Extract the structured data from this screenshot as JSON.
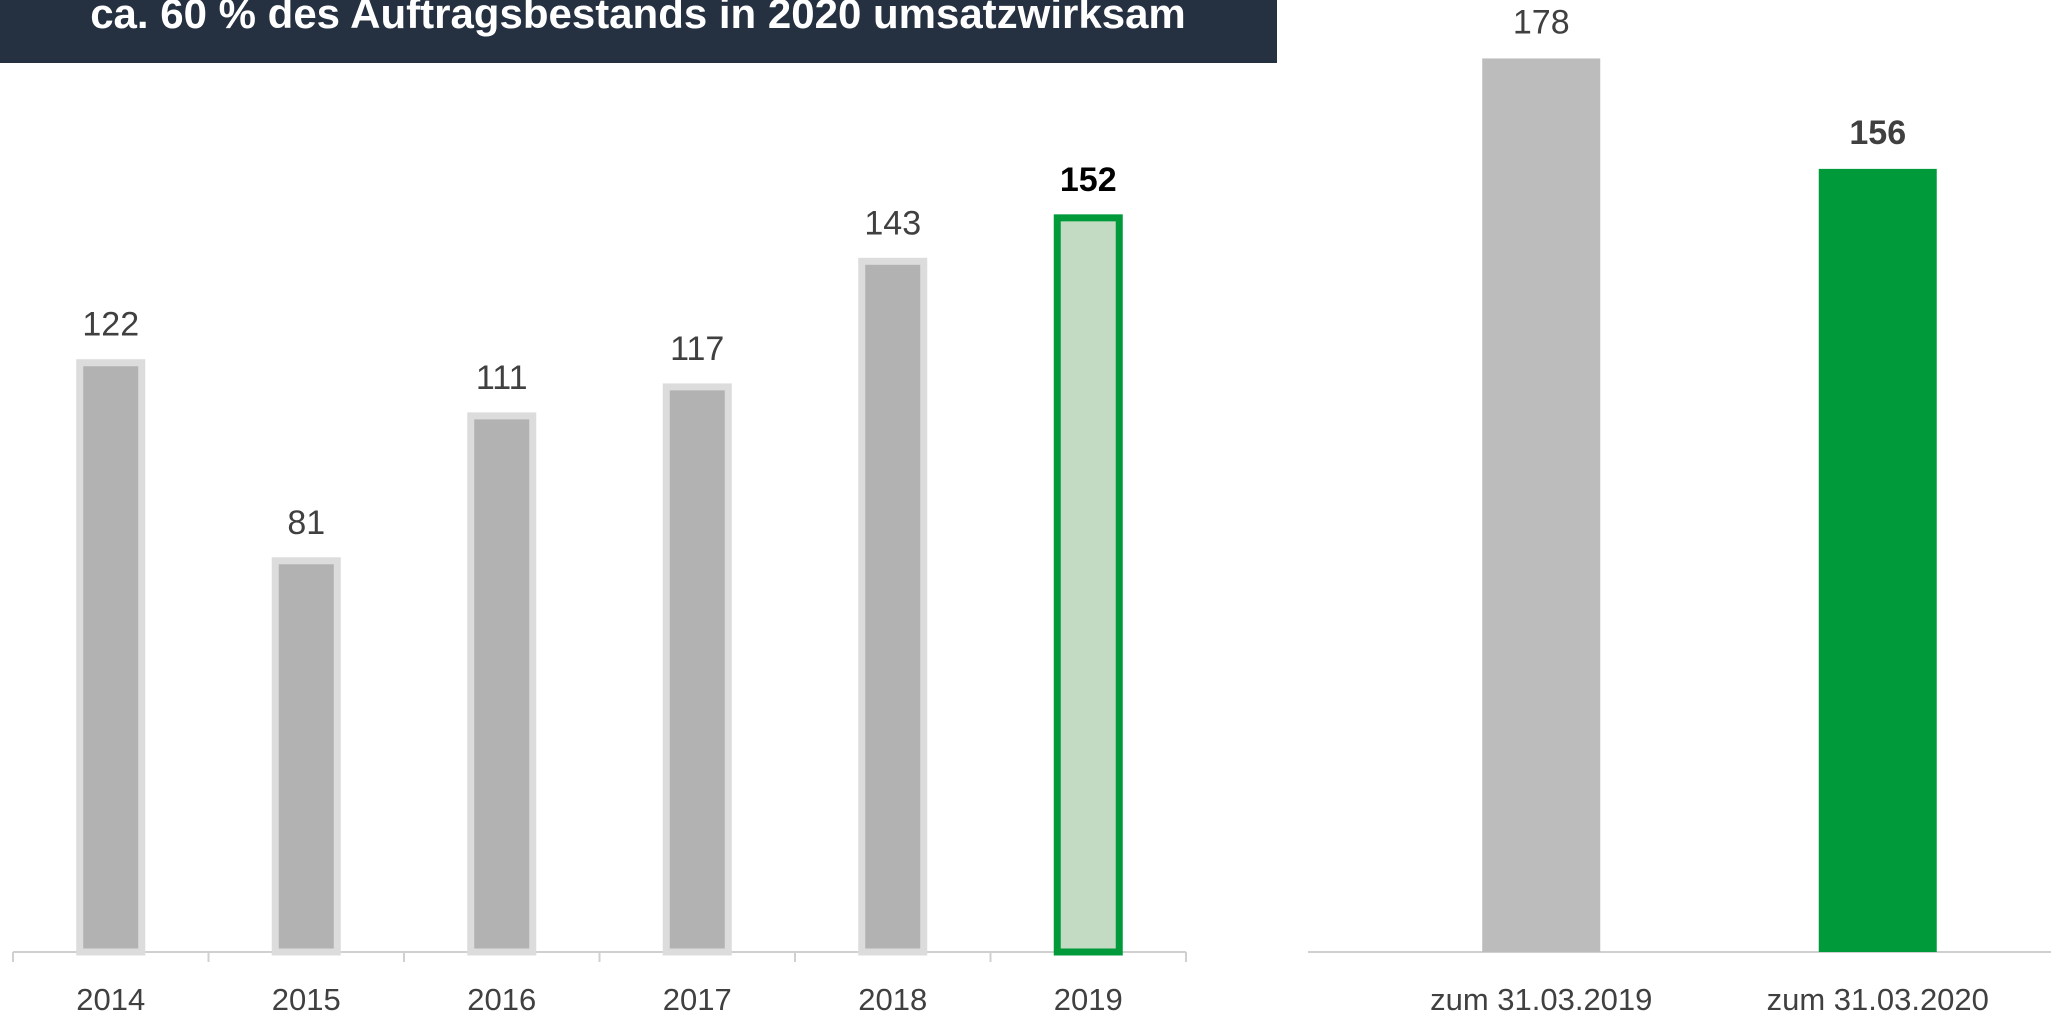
{
  "banner": {
    "title": "ca. 60 % des Auftragsbestands in 2020 umsatzwirksam"
  },
  "chart_data": [
    {
      "type": "bar",
      "categories": [
        "2014",
        "2015",
        "2016",
        "2017",
        "2018",
        "2019"
      ],
      "values": [
        122,
        81,
        111,
        117,
        143,
        152
      ],
      "colors": [
        "#b2b2b2",
        "#b2b2b2",
        "#b2b2b2",
        "#b2b2b2",
        "#b2b2b2",
        "#c3dbc3"
      ],
      "edge_colors": [
        "#dcdcdc",
        "#dcdcdc",
        "#dcdcdc",
        "#dcdcdc",
        "#dcdcdc",
        "#009a3a"
      ],
      "highlight_index": 5
    },
    {
      "type": "bar",
      "categories": [
        "zum 31.03.2019",
        "zum 31.03.2020"
      ],
      "values": [
        178,
        156
      ],
      "colors": [
        "#bcbcbc",
        "#009a3a"
      ],
      "highlight_index": 1
    }
  ]
}
